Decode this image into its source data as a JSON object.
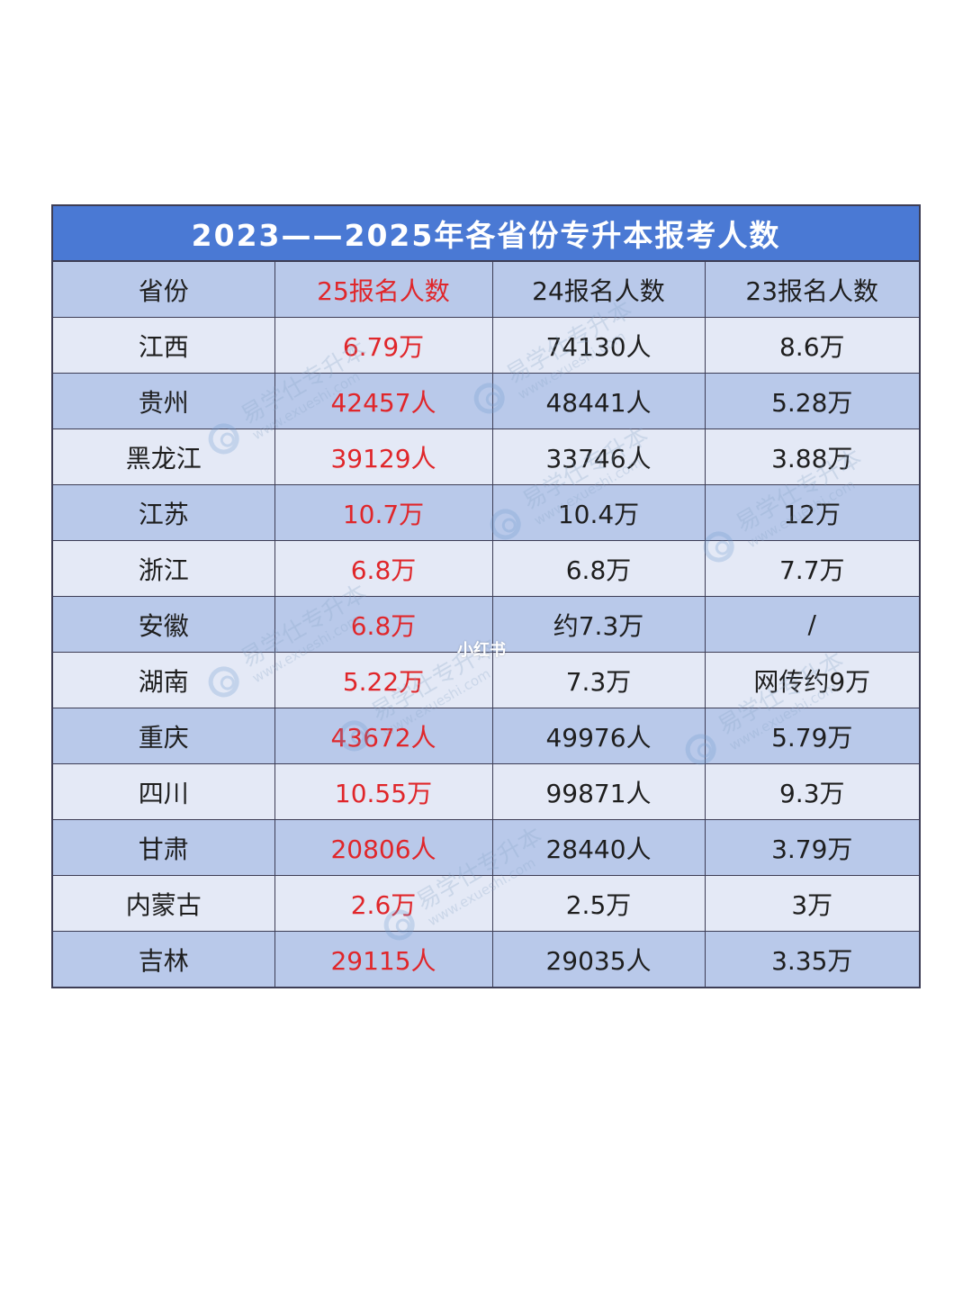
{
  "table": {
    "title": "2023——2025年各省份专升本报考人数",
    "headers": [
      "省份",
      "25报名人数",
      "24报名人数",
      "23报名人数"
    ],
    "rows": [
      [
        "江西",
        "6.79万",
        "74130人",
        "8.6万"
      ],
      [
        "贵州",
        "42457人",
        "48441人",
        "5.28万"
      ],
      [
        "黑龙江",
        "39129人",
        "33746人",
        "3.88万"
      ],
      [
        "江苏",
        "10.7万",
        "10.4万",
        "12万"
      ],
      [
        "浙江",
        "6.8万",
        "6.8万",
        "7.7万"
      ],
      [
        "安徽",
        "6.8万",
        "约7.3万",
        "/"
      ],
      [
        "湖南",
        "5.22万",
        "7.3万",
        "网传约9万"
      ],
      [
        "重庆",
        "43672人",
        "49976人",
        "5.79万"
      ],
      [
        "四川",
        "10.55万",
        "99871人",
        "9.3万"
      ],
      [
        "甘肃",
        "20806人",
        "28440人",
        "3.79万"
      ],
      [
        "内蒙古",
        "2.6万",
        "2.5万",
        "3万"
      ],
      [
        "吉林",
        "29115人",
        "29035人",
        "3.35万"
      ]
    ],
    "colors": {
      "title_bg": "#4a79d4",
      "row_dark": "#b9c9ea",
      "row_light": "#e4e9f6",
      "highlight": "#e0262a"
    }
  },
  "watermark": {
    "brand": "易学仕专升本",
    "url": "www.exueshi.com",
    "icon": "spiral-logo-icon"
  },
  "platform_mark": "小红书"
}
